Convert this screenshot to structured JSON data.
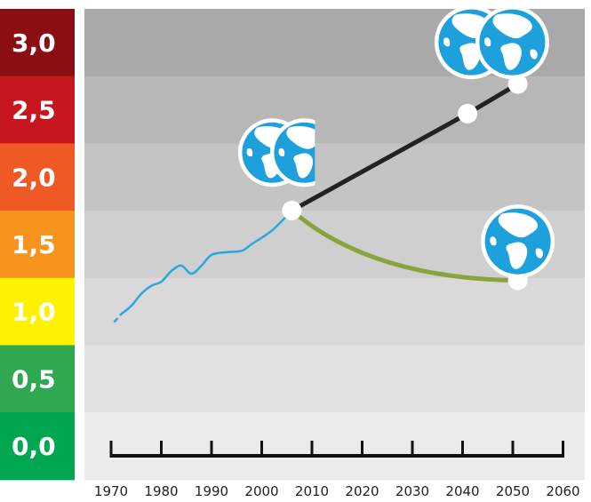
{
  "chart_data": {
    "type": "line",
    "x_ticks": [
      "1970",
      "1980",
      "1990",
      "2000",
      "2010",
      "2020",
      "2030",
      "2040",
      "2050",
      "2060"
    ],
    "xlim": [
      1970,
      2060
    ],
    "ylim": [
      0,
      3
    ],
    "y_scale": [
      {
        "label": "3,0",
        "color": "#8b0f12",
        "text_color": "#ffffff"
      },
      {
        "label": "2,5",
        "color": "#c7161f",
        "text_color": "#ffffff"
      },
      {
        "label": "2,0",
        "color": "#ef5a24",
        "text_color": "#ffffff"
      },
      {
        "label": "1,5",
        "color": "#f7941d",
        "text_color": "#ffffff"
      },
      {
        "label": "1,0",
        "color": "#fff200",
        "text_color": "#ffffff"
      },
      {
        "label": "0,5",
        "color": "#2fa84f",
        "text_color": "#ffffff"
      },
      {
        "label": "0,0",
        "color": "#00a651",
        "text_color": "#ffffff"
      }
    ],
    "series": [
      {
        "type": "historical",
        "color": "#29a8e0",
        "dashed_until": 1972,
        "points": [
          [
            1970.6,
            0.67
          ],
          [
            1972,
            0.73
          ],
          [
            1974,
            0.79
          ],
          [
            1976,
            0.88
          ],
          [
            1978,
            0.94
          ],
          [
            1980,
            0.97
          ],
          [
            1982,
            1.05
          ],
          [
            1984,
            1.09
          ],
          [
            1986,
            1.03
          ],
          [
            1988,
            1.09
          ],
          [
            1990,
            1.17
          ],
          [
            1993,
            1.19
          ],
          [
            1996,
            1.2
          ],
          [
            1998,
            1.25
          ],
          [
            2002,
            1.35
          ],
          [
            2006,
            1.5
          ]
        ]
      },
      {
        "type": "projection",
        "color": "#222222",
        "points": [
          [
            2006,
            1.5
          ],
          [
            2041,
            2.22
          ],
          [
            2051,
            2.44
          ]
        ]
      },
      {
        "type": "projection",
        "color": "#8aa33c",
        "points": [
          [
            2006,
            1.5
          ],
          [
            2051,
            0.98
          ]
        ]
      }
    ],
    "markers": [
      {
        "x": 2006,
        "y": 1.5
      },
      {
        "x": 2041,
        "y": 2.22
      },
      {
        "x": 2051,
        "y": 2.44
      },
      {
        "x": 2051,
        "y": 0.98
      }
    ],
    "globe_icons": [
      {
        "name": "globe-pair-2006",
        "count": 2,
        "near_x": 2006,
        "near_y": 1.93
      },
      {
        "name": "globe-pair-2050",
        "count": 2,
        "near_x": 2046,
        "near_y": 2.75
      },
      {
        "name": "globe-single-2050",
        "count": 1,
        "near_x": 2051,
        "near_y": 1.27
      }
    ],
    "bands": [
      "#a9a9a9",
      "#b7b7b7",
      "#c4c4c4",
      "#cfcfcf",
      "#d9d9d9",
      "#e2e2e2",
      "#ebebeb"
    ],
    "grid": false,
    "legend": "none"
  }
}
